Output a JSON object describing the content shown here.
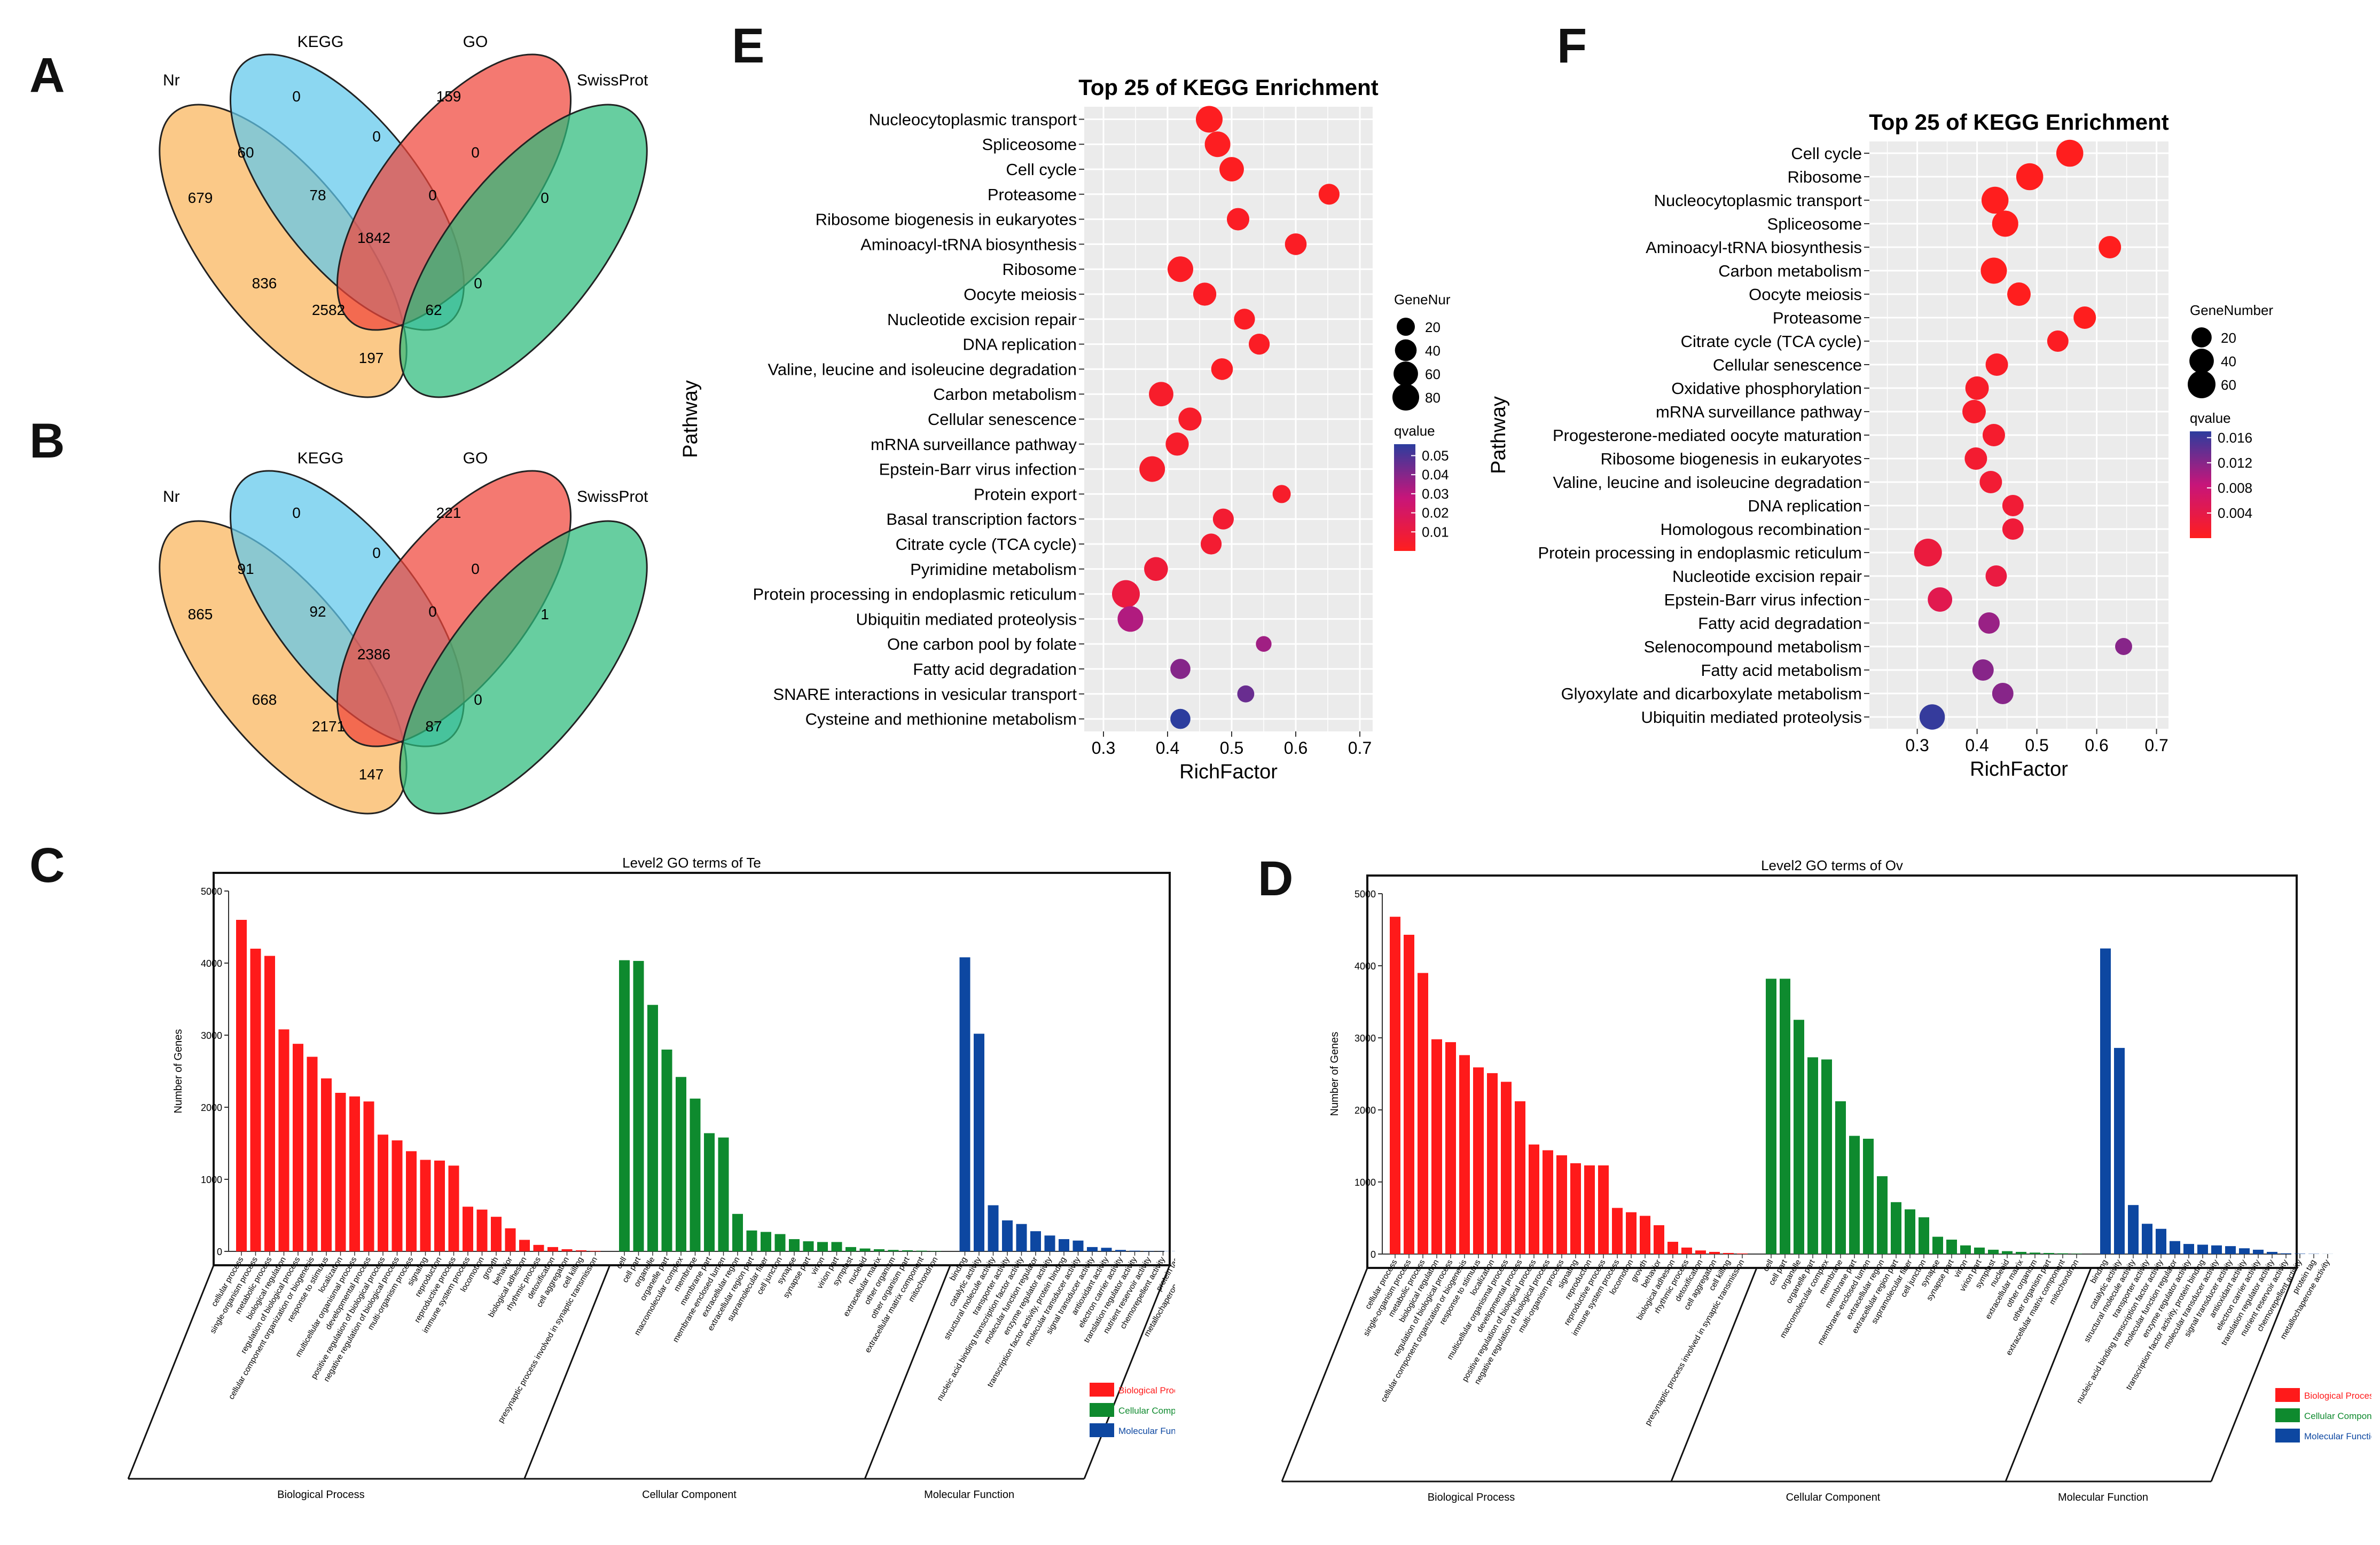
{
  "panel_labels": {
    "a": "A",
    "b": "B",
    "c": "C",
    "d": "D",
    "e": "E",
    "f": "F"
  },
  "venn_sets": {
    "nr": "Nr",
    "kegg": "KEGG",
    "go": "GO",
    "swissprot": "SwissProt"
  },
  "venn_a": {
    "nr_only": "679",
    "kegg_only": "0",
    "go_only": "159",
    "sp_only": "0",
    "nr_kegg": "60",
    "kegg_go": "0",
    "go_sp": "0",
    "nr_go": "836",
    "kegg_sp": "0",
    "nr_kegg_go": "78",
    "all4": "1842",
    "nr_go_sp": "2582",
    "kegg_go_sp": "62",
    "nr_sp": "197",
    "nr_kegg_sp": "0"
  },
  "venn_b": {
    "nr_only": "865",
    "kegg_only": "0",
    "go_only": "221",
    "sp_only": "1",
    "nr_kegg": "91",
    "kegg_go": "0",
    "go_sp": "0",
    "nr_go": "668",
    "kegg_sp": "0",
    "nr_kegg_go": "92",
    "all4": "2386",
    "nr_go_sp": "2171",
    "kegg_go_sp": "87",
    "nr_sp": "147",
    "nr_kegg_sp": "0"
  },
  "colors": {
    "bp": "#ff1a1a",
    "cc": "#0e8a2e",
    "mf": "#0d47a1",
    "nr": "#f9b45a",
    "kegg": "#5fc8ec",
    "go": "#f0453a",
    "sp": "#2dbb7c",
    "dot_grid_bg": "#ebebeb",
    "dot_grid_line": "#ffffff",
    "qlow": "#ff1e1e",
    "qmid": "#c7157a",
    "qhigh": "#2c3d9e"
  },
  "chart_data": [
    {
      "id": "E",
      "type": "scatter",
      "title": "Top 25 of KEGG Enrichment",
      "xlabel": "RichFactor",
      "ylabel": "Pathway",
      "xlim": [
        0.27,
        0.72
      ],
      "xticks": [
        0.3,
        0.4,
        0.5,
        0.6,
        0.7
      ],
      "legend_size_title": "GeneNur",
      "size_legend": [
        20,
        40,
        60,
        80
      ],
      "legend_color_title": "qvalue",
      "color_legend": [
        0.05,
        0.04,
        0.03,
        0.02,
        0.01
      ],
      "color_range": [
        0.0,
        0.056
      ],
      "pathways": [
        "Nucleocytoplasmic transport",
        "Spliceosome",
        "Cell cycle",
        "Proteasome",
        "Ribosome biogenesis in eukaryotes",
        "Aminoacyl-tRNA biosynthesis",
        "Ribosome",
        "Oocyte meiosis",
        "Nucleotide excision repair",
        "DNA replication",
        "Valine, leucine and isoleucine degradation",
        "Carbon metabolism",
        "Cellular senescence",
        "mRNA surveillance pathway",
        "Epstein-Barr virus infection",
        "Protein export",
        "Basal transcription factors",
        "Citrate cycle (TCA cycle)",
        "Pyrimidine metabolism",
        "Protein processing in endoplasmic reticulum",
        "Ubiquitin mediated proteolysis",
        "One carbon pool by folate",
        "Fatty acid degradation",
        "SNARE interactions in vesicular transport",
        "Cysteine and methionine metabolism"
      ],
      "rich": [
        0.465,
        0.478,
        0.5,
        0.652,
        0.51,
        0.6,
        0.42,
        0.458,
        0.52,
        0.543,
        0.485,
        0.39,
        0.435,
        0.415,
        0.376,
        0.578,
        0.487,
        0.468,
        0.382,
        0.335,
        0.342,
        0.55,
        0.42,
        0.522,
        0.42
      ],
      "genes": [
        80,
        70,
        60,
        35,
        45,
        40,
        70,
        50,
        35,
        35,
        40,
        60,
        50,
        50,
        70,
        20,
        35,
        35,
        55,
        90,
        70,
        10,
        30,
        15,
        30
      ],
      "qvalue": [
        0.001,
        0.001,
        0.001,
        0.001,
        0.002,
        0.002,
        0.002,
        0.002,
        0.002,
        0.002,
        0.002,
        0.004,
        0.004,
        0.004,
        0.004,
        0.004,
        0.006,
        0.006,
        0.008,
        0.01,
        0.032,
        0.035,
        0.04,
        0.045,
        0.056
      ]
    },
    {
      "id": "F",
      "type": "scatter",
      "title": "Top 25 of KEGG Enrichment",
      "xlabel": "RichFactor",
      "ylabel": "Pathway",
      "xlim": [
        0.22,
        0.72
      ],
      "xticks": [
        0.3,
        0.4,
        0.5,
        0.6,
        0.7
      ],
      "legend_size_title": "GeneNumber",
      "size_legend": [
        20,
        40,
        60
      ],
      "legend_color_title": "qvalue",
      "color_legend": [
        0.016,
        0.012,
        0.008,
        0.004
      ],
      "color_range": [
        0.0,
        0.017
      ],
      "pathways": [
        "Cell cycle",
        "Ribosome",
        "Nucleocytoplasmic transport",
        "Spliceosome",
        "Aminoacyl-tRNA biosynthesis",
        "Carbon metabolism",
        "Oocyte meiosis",
        "Proteasome",
        "Citrate cycle (TCA cycle)",
        "Cellular senescence",
        "Oxidative phosphorylation",
        "mRNA surveillance pathway",
        "Progesterone-mediated oocyte maturation",
        "Ribosome biogenesis in eukaryotes",
        "Valine, leucine and isoleucine degradation",
        "DNA replication",
        "Homologous recombination",
        "Protein processing in endoplasmic reticulum",
        "Nucleotide excision repair",
        "Epstein-Barr virus infection",
        "Fatty acid degradation",
        "Selenocompound metabolism",
        "Fatty acid metabolism",
        "Glyoxylate and dicarboxylate metabolism",
        "Ubiquitin mediated proteolysis"
      ],
      "rich": [
        0.555,
        0.488,
        0.43,
        0.447,
        0.622,
        0.428,
        0.47,
        0.58,
        0.535,
        0.433,
        0.4,
        0.395,
        0.428,
        0.398,
        0.423,
        0.46,
        0.46,
        0.318,
        0.432,
        0.338,
        0.42,
        0.645,
        0.41,
        0.443,
        0.325
      ],
      "genes": [
        55,
        55,
        55,
        50,
        30,
        50,
        35,
        30,
        25,
        30,
        35,
        35,
        30,
        30,
        30,
        25,
        25,
        60,
        25,
        40,
        25,
        10,
        25,
        25,
        45
      ],
      "qvalue": [
        0.0,
        0.0,
        0.0,
        0.0,
        0.0,
        0.0,
        0.0,
        0.0,
        0.0005,
        0.0008,
        0.001,
        0.0012,
        0.0015,
        0.0018,
        0.002,
        0.0022,
        0.0025,
        0.003,
        0.0032,
        0.0045,
        0.011,
        0.012,
        0.012,
        0.012,
        0.0165
      ]
    },
    {
      "id": "C",
      "type": "bar",
      "title": "Level2 GO terms of Te",
      "ylabel": "Number of Genes",
      "ylim": [
        0,
        5000
      ],
      "yticks": [
        0,
        1000,
        2000,
        3000,
        4000,
        5000
      ],
      "groups": [
        {
          "name": "Biological Process",
          "key": "bp",
          "label": "Biological Process",
          "categories": [
            "cellular process",
            "single-organism process",
            "metabolic process",
            "biological regulation",
            "regulation of biological process",
            "cellular component organization or biogenesis",
            "response to stimulus",
            "localization",
            "multicellular organismal process",
            "developmental process",
            "positive regulation of biological process",
            "negative regulation of biological process",
            "multi-organism process",
            "signaling",
            "reproduction",
            "reproductive process",
            "immune system process",
            "locomotion",
            "growth",
            "behavior",
            "biological adhesion",
            "rhythmic process",
            "detoxification",
            "cell aggregation",
            "cell killing",
            "presynaptic process involved in synaptic transmission"
          ],
          "values": [
            4600,
            4200,
            4100,
            3080,
            2880,
            2700,
            2400,
            2200,
            2150,
            2080,
            1620,
            1540,
            1390,
            1270,
            1260,
            1190,
            620,
            580,
            480,
            320,
            160,
            90,
            60,
            30,
            15,
            8
          ]
        },
        {
          "name": "Cellular Component",
          "key": "cc",
          "label": "Cellular Component",
          "categories": [
            "cell",
            "cell part",
            "organelle",
            "organelle part",
            "macromolecular complex",
            "membrane",
            "membrane part",
            "membrane-enclosed lumen",
            "extracellular region",
            "extracellular region part",
            "supramolecular fiber",
            "cell junction",
            "synapse",
            "synapse part",
            "virion",
            "virion part",
            "symplast",
            "nucleoid",
            "extracellular matrix",
            "other organism",
            "other organism part",
            "extracellular matrix component",
            "mitochondrion"
          ],
          "values": [
            4040,
            4030,
            3420,
            2800,
            2420,
            2120,
            1640,
            1580,
            520,
            290,
            270,
            240,
            170,
            140,
            130,
            130,
            60,
            40,
            30,
            20,
            15,
            10,
            5
          ]
        },
        {
          "name": "Molecular Function",
          "key": "mf",
          "label": "Molecular Function",
          "categories": [
            "binding",
            "catalytic activity",
            "structural molecule activity",
            "transporter activity",
            "nucleic acid binding transcription factor activity",
            "molecular function regulator",
            "enzyme regulator activity",
            "transcription factor activity, protein binding",
            "molecular transducer activity",
            "signal transducer activity",
            "antioxidant activity",
            "electron carrier activity",
            "translation regulator activity",
            "nutrient reservoir activity",
            "chemorepellent activity",
            "protein tag",
            "metallochaperone activity"
          ],
          "values": [
            4080,
            3020,
            640,
            430,
            380,
            280,
            220,
            170,
            150,
            60,
            50,
            20,
            10,
            5,
            3,
            2,
            1
          ]
        }
      ]
    },
    {
      "id": "D",
      "type": "bar",
      "title": "Level2 GO terms of Ov",
      "ylabel": "Number of Genes",
      "ylim": [
        0,
        5000
      ],
      "yticks": [
        0,
        1000,
        2000,
        3000,
        4000,
        5000
      ],
      "groups": [
        {
          "name": "Biological Process",
          "key": "bp",
          "label": "Biological Process",
          "categories": [
            "cellular process",
            "single-organism process",
            "metabolic process",
            "biological regulation",
            "regulation of biological process",
            "cellular component organization or biogenesis",
            "response to stimulus",
            "localization",
            "multicellular organismal process",
            "developmental process",
            "positive regulation of biological process",
            "negative regulation of biological process",
            "multi-organism process",
            "signaling",
            "reproduction",
            "reproductive process",
            "immune system process",
            "locomotion",
            "growth",
            "behavior",
            "biological adhesion",
            "rhythmic process",
            "detoxification",
            "cell aggregation",
            "cell killing",
            "presynaptic process involved in synaptic transmission"
          ],
          "values": [
            4680,
            4430,
            3900,
            2980,
            2940,
            2760,
            2590,
            2510,
            2390,
            2120,
            1520,
            1440,
            1370,
            1260,
            1230,
            1230,
            640,
            580,
            530,
            400,
            170,
            90,
            50,
            30,
            15,
            8
          ]
        },
        {
          "name": "Cellular Component",
          "key": "cc",
          "label": "Cellular Component",
          "categories": [
            "cell",
            "cell part",
            "organelle",
            "organelle part",
            "macromolecular complex",
            "membrane",
            "membrane part",
            "membrane-enclosed lumen",
            "extracellular region",
            "extracellular region part",
            "supramolecular fiber",
            "cell junction",
            "synapse",
            "synapse part",
            "virion",
            "virion part",
            "symplast",
            "nucleoid",
            "extracellular matrix",
            "other organism",
            "other organism part",
            "extracellular matrix component",
            "mitochondrion"
          ],
          "values": [
            3820,
            3820,
            3250,
            2730,
            2700,
            2120,
            1640,
            1600,
            1080,
            720,
            620,
            510,
            240,
            200,
            120,
            90,
            60,
            40,
            30,
            20,
            15,
            10,
            5
          ]
        },
        {
          "name": "Molecular Function",
          "key": "mf",
          "label": "Molecular Function",
          "categories": [
            "binding",
            "catalytic activity",
            "structural molecule activity",
            "transporter activity",
            "nucleic acid binding transcription factor activity",
            "molecular function regulator",
            "enzyme regulator activity",
            "transcription factor activity, protein binding",
            "molecular transducer activity",
            "signal transducer activity",
            "antioxidant activity",
            "electron carrier activity",
            "translation regulator activity",
            "nutrient reservoir activity",
            "chemorepellent activity",
            "protein tag",
            "metallochaperone activity"
          ],
          "values": [
            4240,
            2860,
            680,
            420,
            350,
            180,
            140,
            130,
            120,
            110,
            80,
            60,
            30,
            10,
            5,
            3,
            1
          ]
        }
      ]
    }
  ]
}
